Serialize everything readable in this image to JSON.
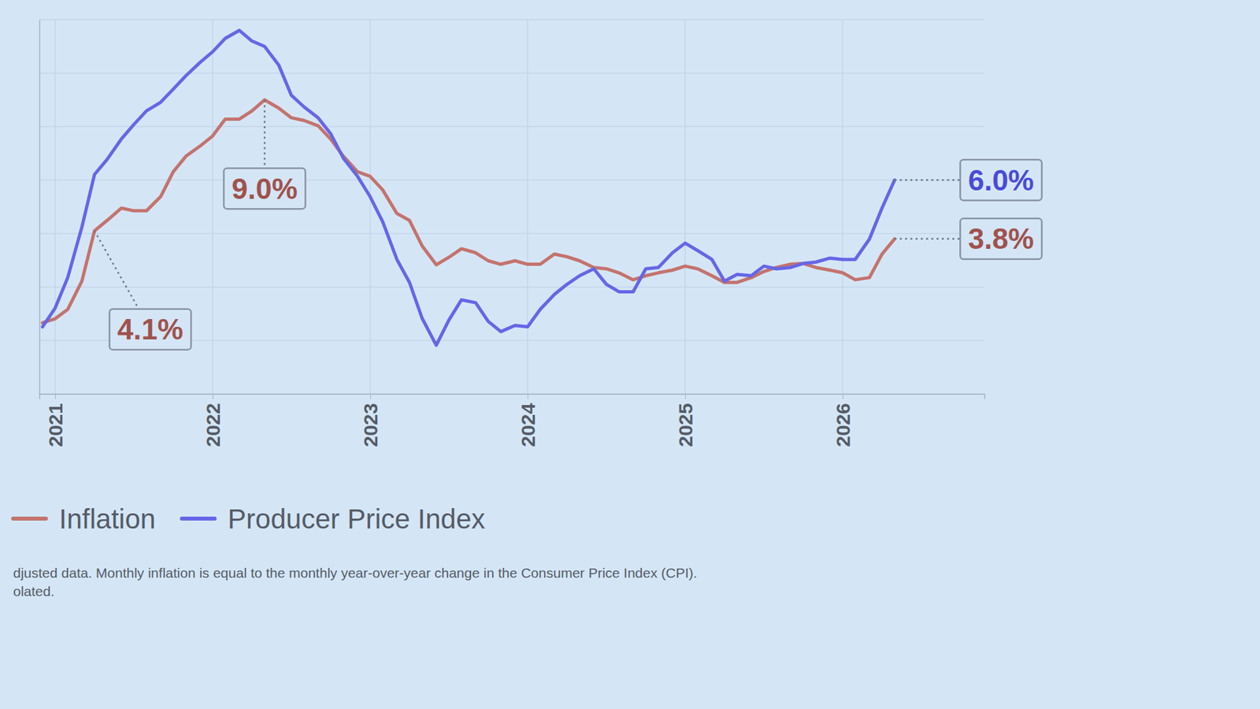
{
  "chart_data": {
    "type": "line",
    "x": [
      2020.92,
      2021.0,
      2021.08,
      2021.17,
      2021.25,
      2021.33,
      2021.42,
      2021.5,
      2021.58,
      2021.67,
      2021.75,
      2021.83,
      2021.92,
      2022.0,
      2022.08,
      2022.17,
      2022.25,
      2022.33,
      2022.42,
      2022.5,
      2022.58,
      2022.67,
      2022.75,
      2022.83,
      2022.92,
      2023.0,
      2023.08,
      2023.17,
      2023.25,
      2023.33,
      2023.42,
      2023.5,
      2023.58,
      2023.67,
      2023.75,
      2023.83,
      2023.92,
      2024.0,
      2024.08,
      2024.17,
      2024.25,
      2024.33,
      2024.42,
      2024.5,
      2024.58,
      2024.67,
      2024.75,
      2024.83,
      2024.92,
      2025.0,
      2025.08,
      2025.17,
      2025.25,
      2025.33,
      2025.42,
      2025.5,
      2025.58,
      2025.67,
      2025.75,
      2025.83,
      2025.92,
      2026.0,
      2026.08,
      2026.17,
      2026.25,
      2026.33
    ],
    "series": [
      {
        "name": "Inflation",
        "color": "#c4736d",
        "values": [
          0.66,
          0.81,
          1.16,
          2.22,
          4.1,
          4.49,
          4.95,
          4.85,
          4.85,
          5.38,
          6.31,
          6.89,
          7.27,
          7.65,
          8.28,
          8.28,
          8.59,
          9.0,
          8.69,
          8.33,
          8.23,
          8.03,
          7.53,
          6.89,
          6.31,
          6.14,
          5.63,
          4.75,
          4.49,
          3.54,
          2.83,
          3.11,
          3.43,
          3.28,
          2.98,
          2.85,
          2.98,
          2.85,
          2.85,
          3.23,
          3.13,
          2.98,
          2.73,
          2.68,
          2.53,
          2.27,
          2.42,
          2.53,
          2.63,
          2.78,
          2.68,
          2.42,
          2.17,
          2.17,
          2.35,
          2.58,
          2.73,
          2.85,
          2.88,
          2.73,
          2.63,
          2.53,
          2.27,
          2.35,
          3.23,
          3.8
        ]
      },
      {
        "name": "Producer Price Index",
        "color": "#6666e6",
        "values": [
          0.51,
          1.21,
          2.35,
          4.24,
          6.21,
          6.77,
          7.53,
          8.08,
          8.59,
          8.91,
          9.4,
          9.9,
          10.4,
          10.8,
          11.3,
          11.6,
          11.2,
          11.0,
          10.3,
          9.17,
          8.74,
          8.33,
          7.73,
          6.82,
          6.14,
          5.38,
          4.44,
          3.03,
          2.17,
          0.83,
          -0.18,
          0.76,
          1.52,
          1.41,
          0.71,
          0.33,
          0.56,
          0.51,
          1.16,
          1.72,
          2.1,
          2.42,
          2.68,
          2.1,
          1.82,
          1.82,
          2.68,
          2.73,
          3.28,
          3.64,
          3.36,
          3.03,
          2.22,
          2.47,
          2.42,
          2.78,
          2.68,
          2.73,
          2.88,
          2.93,
          3.08,
          3.03,
          3.03,
          3.79,
          4.95,
          6.0
        ]
      }
    ],
    "xlim": [
      2020.9,
      2026.9
    ],
    "xticks": [
      2021,
      2022,
      2023,
      2024,
      2025,
      2026
    ],
    "ylim": [
      -2,
      12
    ],
    "yticks": [
      -2,
      0,
      2,
      4,
      6,
      8,
      10,
      12
    ],
    "tick_labels": "x",
    "grid": true,
    "legend": "bottom",
    "annotations": [
      {
        "x": 2021.25,
        "y": 4.1,
        "label": "4.1%",
        "color": "#a0524d"
      },
      {
        "x": 2022.33,
        "y": 9.0,
        "label": "9.0%",
        "color": "#a0524d"
      },
      {
        "x": 2026.33,
        "y": 6.0,
        "label": "6.0%",
        "color": "#4a4ad6"
      },
      {
        "x": 2026.33,
        "y": 3.8,
        "label": "3.8%",
        "color": "#a0524d"
      }
    ],
    "footnote": [
      "djusted data. Monthly inflation is equal to the monthly year-over-year change in the Consumer Price Index (CPI).",
      "olated."
    ]
  }
}
